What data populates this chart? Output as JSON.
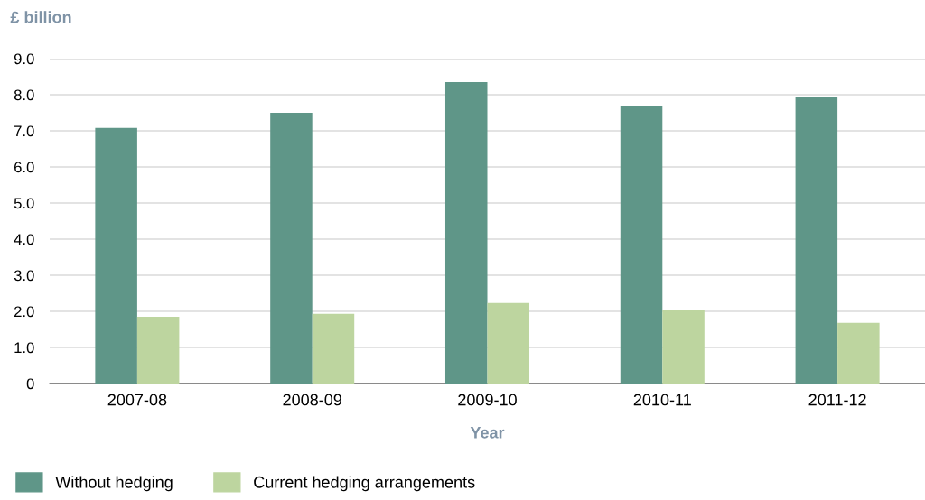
{
  "chart_data": {
    "type": "bar",
    "ylabel": "£ billion",
    "xlabel": "Year",
    "categories": [
      "2007-08",
      "2008-09",
      "2009-10",
      "2010-11",
      "2011-12"
    ],
    "series": [
      {
        "name": "Without hedging",
        "color": "#5f9688",
        "values": [
          7.08,
          7.5,
          8.35,
          7.7,
          7.93
        ]
      },
      {
        "name": "Current hedging arrangements",
        "color": "#bdd59f",
        "values": [
          1.85,
          1.93,
          2.23,
          2.05,
          1.68
        ]
      }
    ],
    "ylim": [
      0,
      9
    ],
    "yticks": [
      0,
      {
        "value": 1,
        "label": "1.0"
      },
      {
        "value": 2,
        "label": "2.0"
      },
      {
        "value": 3,
        "label": "3.0"
      },
      {
        "value": 4,
        "label": "4.0"
      },
      {
        "value": 5,
        "label": "5.0"
      },
      {
        "value": 6,
        "label": "6.0"
      },
      {
        "value": 7,
        "label": "7.0"
      },
      {
        "value": 8,
        "label": "8.0"
      },
      {
        "value": 9,
        "label": "9.0"
      }
    ],
    "grid": "y",
    "legend": "bottom left"
  }
}
